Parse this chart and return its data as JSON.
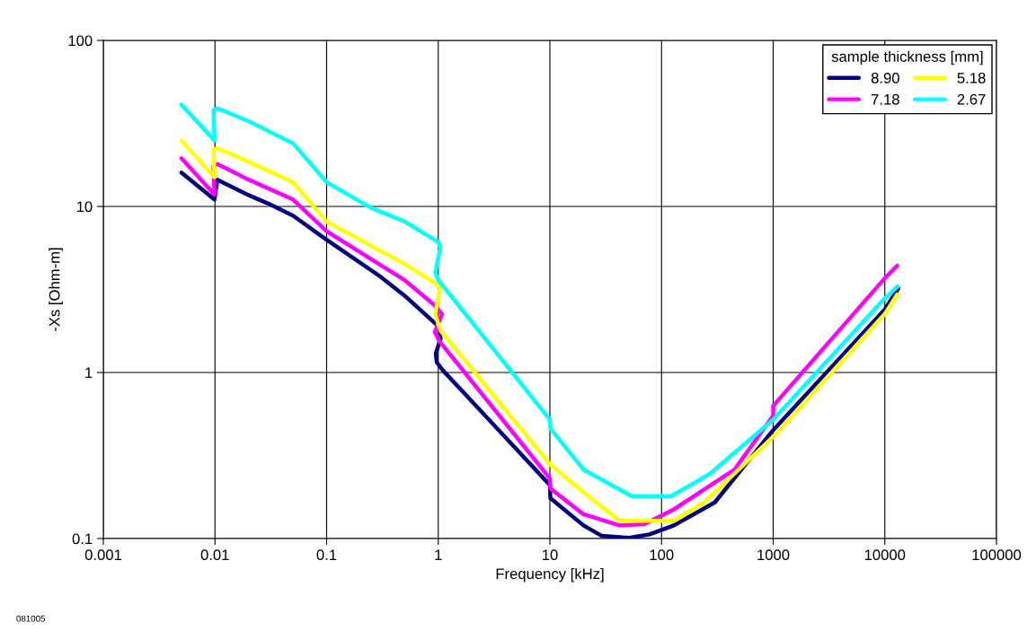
{
  "chart_data": {
    "type": "line",
    "xlabel": "Frequency [kHz]",
    "ylabel": "-Xs [Ohm-m]",
    "legend_title": "sample thickness [mm]",
    "legend": "top right",
    "log": "xy",
    "grid": true,
    "marker": "none",
    "line_style": "solid",
    "xlim": [
      0.001,
      100000
    ],
    "xticks": [
      0.001,
      0.01,
      0.1,
      1,
      10,
      100,
      1000,
      10000,
      100000
    ],
    "ylim": [
      0.1,
      100
    ],
    "yticks": [
      0.1,
      1,
      10,
      100
    ],
    "annotations": [
      "081005"
    ],
    "series": [
      {
        "name": "8.90",
        "color": "#000080",
        "x": [
          0.005,
          0.0099,
          0.0105,
          0.02,
          0.03,
          0.05,
          0.1,
          0.3,
          0.5,
          1.0,
          1.05,
          0.95,
          0.97,
          1.1,
          10,
          10.1,
          20,
          29,
          51,
          78,
          129,
          300,
          1000,
          10000,
          13200
        ],
        "values": [
          16,
          11,
          14.5,
          11.7,
          10.4,
          8.8,
          6.3,
          3.8,
          2.9,
          1.9,
          1.6,
          1.3,
          1.15,
          1.03,
          0.21,
          0.175,
          0.12,
          0.104,
          0.101,
          0.106,
          0.12,
          0.165,
          0.45,
          2.4,
          3.2
        ]
      },
      {
        "name": "7.18",
        "color": "#ff00ff",
        "x": [
          0.005,
          0.0099,
          0.0097,
          0.0105,
          0.02,
          0.05,
          0.1,
          0.5,
          0.92,
          1.08,
          0.93,
          1.02,
          10,
          10.1,
          20,
          42,
          70,
          129,
          450,
          1000,
          1001,
          10000,
          12900
        ],
        "values": [
          19.5,
          11.8,
          17.5,
          18,
          14.5,
          11,
          7.1,
          3.6,
          2.55,
          2.25,
          1.75,
          1.55,
          0.23,
          0.2,
          0.14,
          0.12,
          0.122,
          0.15,
          0.26,
          0.55,
          0.63,
          3.7,
          4.4
        ]
      },
      {
        "name": "5.18",
        "color": "#ffff00",
        "x": [
          0.005,
          0.0099,
          0.0097,
          0.0105,
          0.02,
          0.05,
          0.1,
          0.5,
          1.04,
          0.94,
          1.04,
          10,
          20,
          42,
          129,
          240,
          1000,
          10000,
          12900
        ],
        "values": [
          25,
          15,
          22,
          22.4,
          18.6,
          14,
          8.1,
          4.5,
          3.3,
          2.25,
          1.8,
          0.28,
          0.19,
          0.128,
          0.128,
          0.165,
          0.41,
          2.25,
          2.95
        ]
      },
      {
        "name": "2.67",
        "color": "#00ffff",
        "x": [
          0.005,
          0.0099,
          0.0097,
          0.0105,
          0.02,
          0.05,
          0.1,
          0.25,
          0.5,
          1.0,
          1.04,
          0.94,
          1.0,
          10,
          10.1,
          20,
          54,
          122,
          270,
          1000,
          10000,
          13000
        ],
        "values": [
          41,
          25,
          38,
          39,
          32.6,
          24,
          14,
          9.8,
          8.1,
          6.1,
          5.6,
          4.0,
          3.6,
          0.52,
          0.46,
          0.26,
          0.18,
          0.18,
          0.245,
          0.52,
          2.8,
          3.3
        ]
      }
    ]
  }
}
